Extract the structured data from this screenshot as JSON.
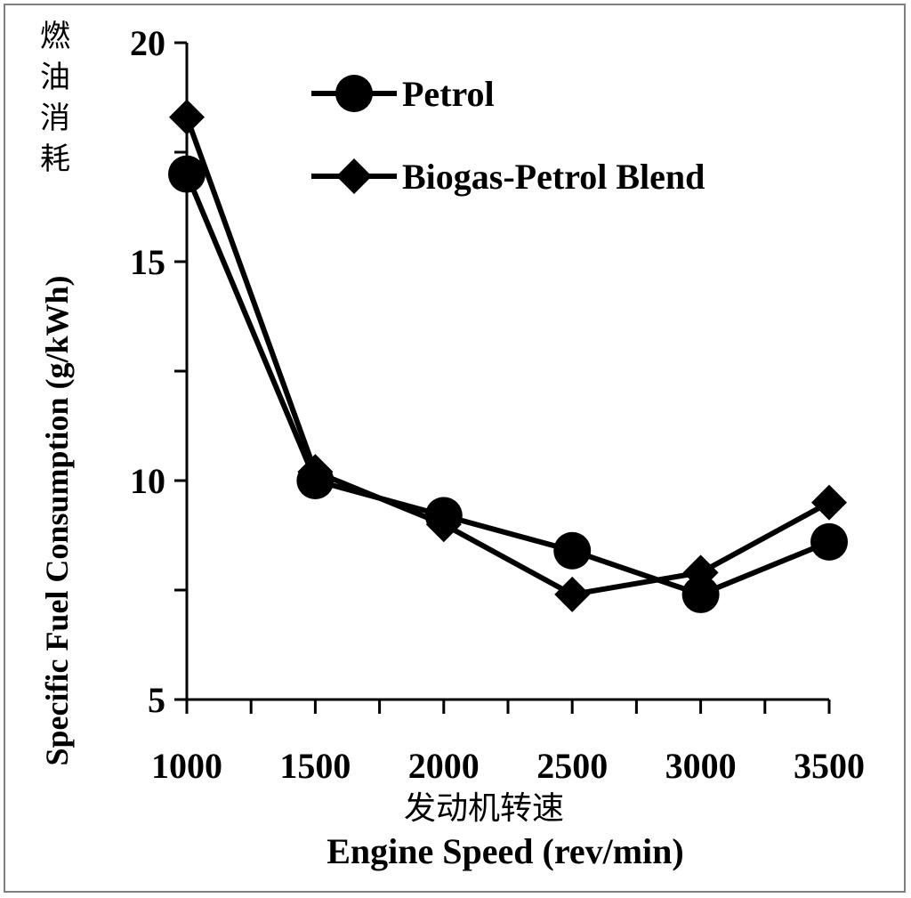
{
  "chart_data": {
    "type": "line",
    "xlabel": "Engine Speed (rev/min)",
    "xlabel_cn": "发动机转速",
    "ylabel": "Specific Fuel Consumption (g/kWh)",
    "ylabel_cn": "燃油消耗",
    "x": [
      1000,
      1500,
      2000,
      2500,
      3000,
      3500
    ],
    "x_tick_labels": [
      "1000",
      "1500",
      "2000",
      "2500",
      "3000",
      "3500"
    ],
    "y_tick_labels": [
      "5",
      "10",
      "15",
      "20"
    ],
    "ylim": [
      5,
      20
    ],
    "grid": false,
    "legend_position": "top-left",
    "series": [
      {
        "name": "Petrol",
        "marker": "circle",
        "values": [
          17.0,
          10.0,
          9.2,
          8.4,
          7.4,
          8.6
        ]
      },
      {
        "name": "Biogas-Petrol Blend",
        "marker": "diamond",
        "values": [
          18.3,
          10.2,
          9.0,
          7.4,
          7.9,
          9.5
        ]
      }
    ],
    "color": "#000000"
  }
}
